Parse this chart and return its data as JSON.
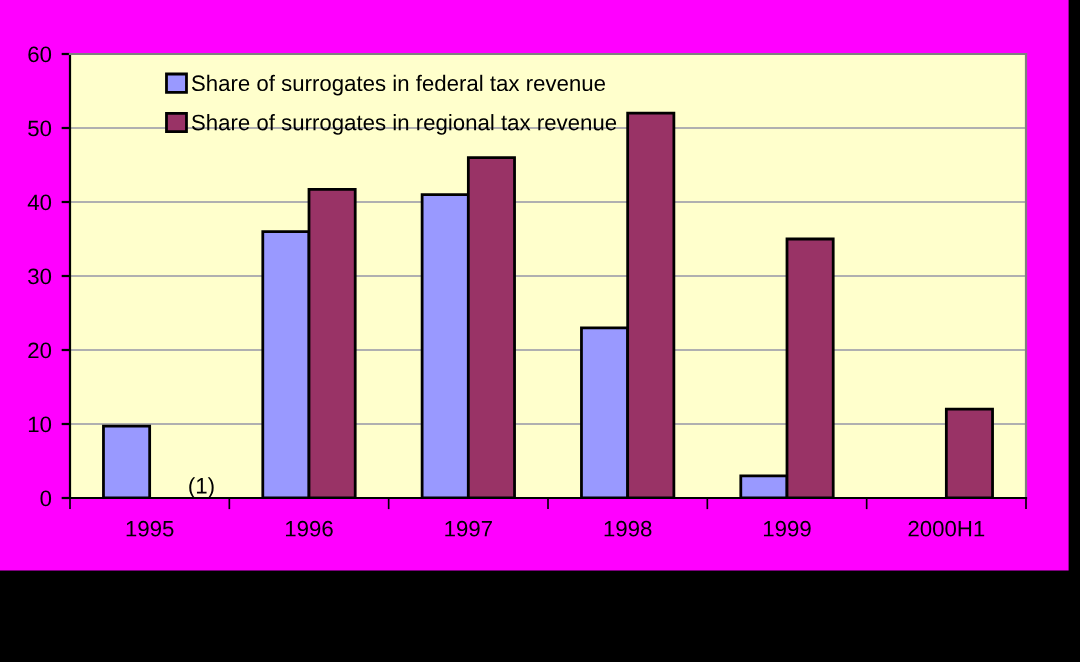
{
  "chart_data": {
    "type": "bar",
    "categories": [
      "1995",
      "1996",
      "1997",
      "1998",
      "1999",
      "2000H1"
    ],
    "series": [
      {
        "name": "Share of surrogates in federal tax revenue",
        "color": "#9999ff",
        "values": [
          9.7,
          36,
          41,
          23,
          3,
          null
        ]
      },
      {
        "name": "Share of surrogates in regional tax revenue",
        "color": "#993366",
        "values": [
          null,
          41.7,
          46,
          52,
          35,
          12
        ]
      }
    ],
    "annotations": [
      {
        "text": "(1)",
        "x": "1995",
        "y": 0
      }
    ],
    "ylim": [
      0,
      60
    ],
    "yticks": [
      0,
      10,
      20,
      30,
      40,
      50,
      60
    ],
    "grid": "y",
    "legend": "top left"
  }
}
